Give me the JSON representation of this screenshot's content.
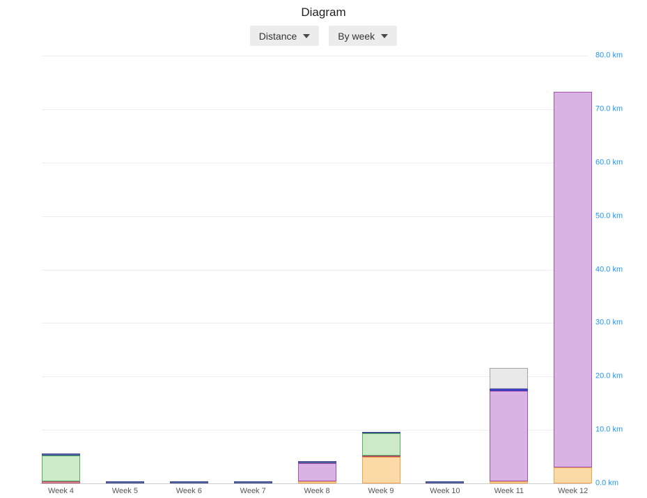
{
  "page": {
    "title": "Diagram"
  },
  "controls": {
    "metric_dropdown": {
      "label": "Distance",
      "icon": "chevron-down-icon"
    },
    "grouping_dropdown": {
      "label": "By week",
      "icon": "chevron-down-icon"
    }
  },
  "chart_data": {
    "type": "bar",
    "stacked": true,
    "title": "Diagram",
    "unit": "km",
    "grid": "horizontal",
    "legend": "none",
    "categories": [
      "Week 4",
      "Week 5",
      "Week 6",
      "Week 7",
      "Week 8",
      "Week 9",
      "Week 10",
      "Week 11",
      "Week 12"
    ],
    "series": [
      {
        "name": "orange",
        "fill": "#fbdaa7",
        "border": "#f0a24d",
        "values": [
          0,
          0,
          0,
          0,
          0.3,
          4.9,
          0,
          0.2,
          3.0
        ]
      },
      {
        "name": "pink",
        "fill": "#e59aa8",
        "border": "#b34d62",
        "values": [
          0.3,
          0,
          0,
          0,
          0,
          0.3,
          0,
          0,
          0
        ]
      },
      {
        "name": "purple",
        "fill": "#d9b3e3",
        "border": "#a551b2",
        "values": [
          0,
          0,
          0,
          0,
          3.4,
          0,
          0,
          17.0,
          70.2
        ]
      },
      {
        "name": "green",
        "fill": "#cdeac8",
        "border": "#56b262",
        "values": [
          4.9,
          0,
          0,
          0,
          0,
          4.1,
          0,
          0,
          0
        ]
      },
      {
        "name": "navy",
        "fill": "#5c69a3",
        "border": "#3e4c8f",
        "values": [
          0.4,
          0.4,
          0.4,
          0.4,
          0.4,
          0.3,
          0.4,
          0,
          0
        ]
      },
      {
        "name": "indigo",
        "fill": "#4547cf",
        "border": "#3336b8",
        "values": [
          0,
          0,
          0,
          0,
          0,
          0,
          0,
          0.4,
          0
        ]
      },
      {
        "name": "gray",
        "fill": "#e9e9e9",
        "border": "#a3a3a3",
        "values": [
          0,
          0,
          0,
          0,
          0,
          0,
          0,
          3.9,
          0
        ]
      }
    ],
    "totals": [
      5.6,
      0.4,
      0.4,
      0.4,
      4.1,
      9.6,
      0.4,
      21.5,
      73.2
    ],
    "y_axis": {
      "position": "right",
      "min": 0,
      "max": 80,
      "tick_step": 10,
      "tick_labels": [
        "0.0 km",
        "10.0 km",
        "20.0 km",
        "30.0 km",
        "40.0 km",
        "50.0 km",
        "60.0 km",
        "70.0 km",
        "80.0 km"
      ],
      "label_color": "#2196f3"
    }
  }
}
